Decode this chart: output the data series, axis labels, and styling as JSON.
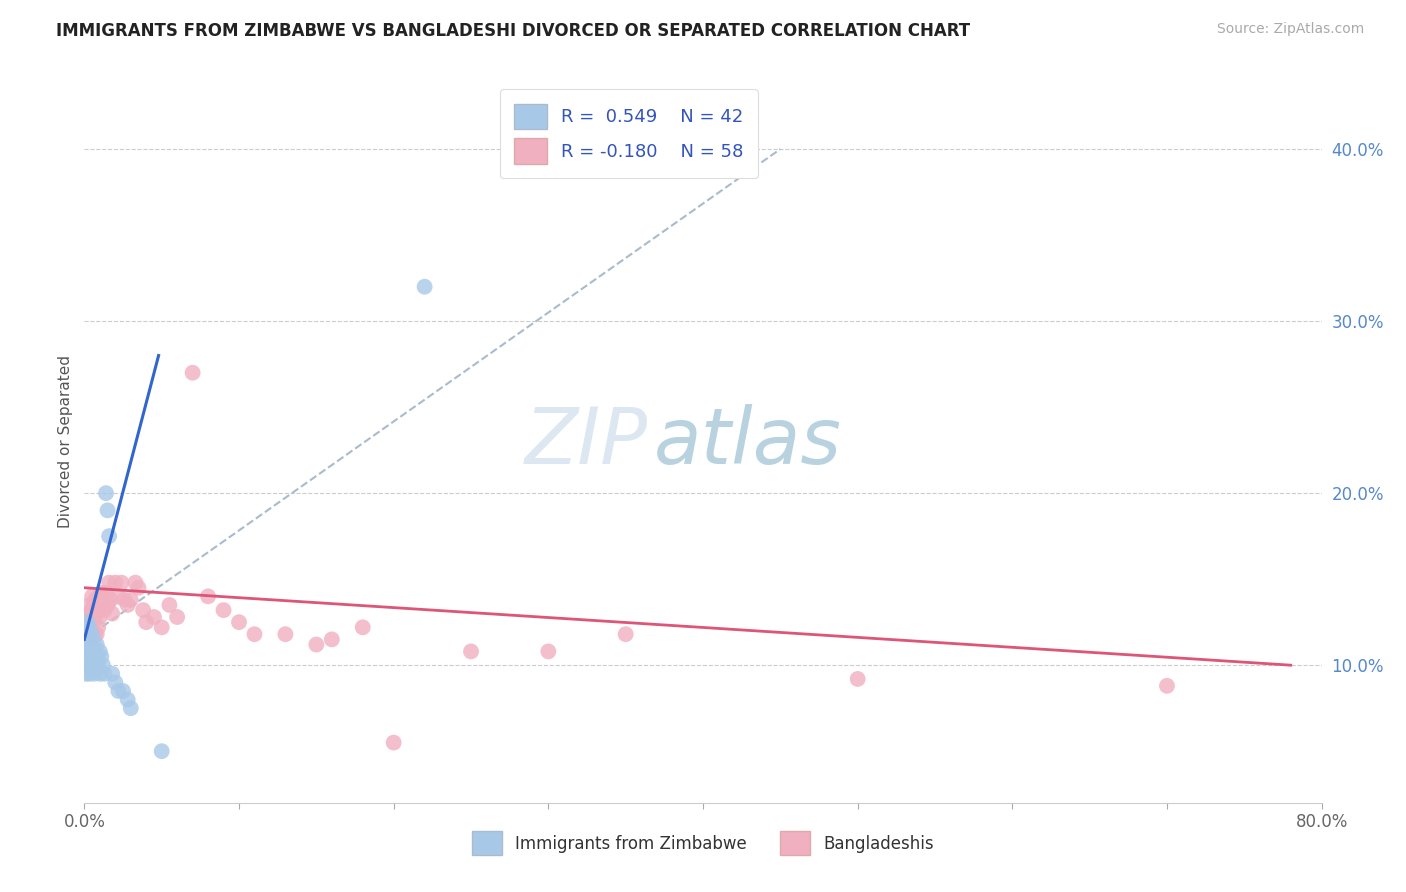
{
  "title": "IMMIGRANTS FROM ZIMBABWE VS BANGLADESHI DIVORCED OR SEPARATED CORRELATION CHART",
  "source": "Source: ZipAtlas.com",
  "ylabel": "Divorced or Separated",
  "xlim": [
    0.0,
    0.8
  ],
  "ylim": [
    0.02,
    0.44
  ],
  "xticks": [
    0.0,
    0.1,
    0.2,
    0.3,
    0.4,
    0.5,
    0.6,
    0.7,
    0.8
  ],
  "xticklabels": [
    "0.0%",
    "",
    "",
    "",
    "",
    "",
    "",
    "",
    "80.0%"
  ],
  "yticks_right": [
    0.1,
    0.2,
    0.3,
    0.4
  ],
  "ytick_labels_right": [
    "10.0%",
    "20.0%",
    "30.0%",
    "40.0%"
  ],
  "r_blue": 0.549,
  "n_blue": 42,
  "r_pink": -0.18,
  "n_pink": 58,
  "blue_color": "#a8c8e8",
  "pink_color": "#f0b0c0",
  "blue_line_color": "#3366cc",
  "pink_line_color": "#dd5577",
  "dash_line_color": "#aabbcc",
  "watermark_zip": "ZIP",
  "watermark_atlas": "atlas",
  "blue_scatter_x": [
    0.001,
    0.001,
    0.002,
    0.002,
    0.002,
    0.002,
    0.003,
    0.003,
    0.003,
    0.003,
    0.003,
    0.003,
    0.004,
    0.004,
    0.004,
    0.004,
    0.005,
    0.005,
    0.005,
    0.006,
    0.006,
    0.007,
    0.007,
    0.008,
    0.008,
    0.009,
    0.01,
    0.01,
    0.011,
    0.012,
    0.013,
    0.014,
    0.015,
    0.016,
    0.018,
    0.02,
    0.022,
    0.025,
    0.028,
    0.03,
    0.05,
    0.22
  ],
  "blue_scatter_y": [
    0.12,
    0.095,
    0.11,
    0.125,
    0.105,
    0.115,
    0.118,
    0.108,
    0.122,
    0.112,
    0.1,
    0.095,
    0.115,
    0.105,
    0.108,
    0.098,
    0.118,
    0.108,
    0.1,
    0.112,
    0.095,
    0.108,
    0.1,
    0.112,
    0.105,
    0.1,
    0.108,
    0.095,
    0.105,
    0.1,
    0.095,
    0.2,
    0.19,
    0.175,
    0.095,
    0.09,
    0.085,
    0.085,
    0.08,
    0.075,
    0.05,
    0.32
  ],
  "pink_scatter_x": [
    0.001,
    0.002,
    0.002,
    0.003,
    0.003,
    0.003,
    0.004,
    0.004,
    0.005,
    0.005,
    0.005,
    0.006,
    0.006,
    0.007,
    0.007,
    0.008,
    0.008,
    0.009,
    0.009,
    0.01,
    0.01,
    0.011,
    0.012,
    0.013,
    0.014,
    0.015,
    0.016,
    0.017,
    0.018,
    0.02,
    0.022,
    0.024,
    0.026,
    0.028,
    0.03,
    0.033,
    0.035,
    0.038,
    0.04,
    0.045,
    0.05,
    0.055,
    0.06,
    0.07,
    0.08,
    0.09,
    0.1,
    0.11,
    0.13,
    0.15,
    0.16,
    0.18,
    0.2,
    0.25,
    0.3,
    0.35,
    0.5,
    0.7
  ],
  "pink_scatter_y": [
    0.125,
    0.13,
    0.12,
    0.135,
    0.125,
    0.115,
    0.13,
    0.12,
    0.14,
    0.128,
    0.118,
    0.135,
    0.125,
    0.138,
    0.118,
    0.13,
    0.118,
    0.132,
    0.122,
    0.14,
    0.128,
    0.142,
    0.138,
    0.132,
    0.142,
    0.135,
    0.148,
    0.138,
    0.13,
    0.148,
    0.14,
    0.148,
    0.138,
    0.135,
    0.138,
    0.148,
    0.145,
    0.132,
    0.125,
    0.128,
    0.122,
    0.135,
    0.128,
    0.27,
    0.14,
    0.132,
    0.125,
    0.118,
    0.118,
    0.112,
    0.115,
    0.122,
    0.055,
    0.108,
    0.108,
    0.118,
    0.092,
    0.088
  ],
  "blue_line_x": [
    0.0,
    0.048
  ],
  "blue_line_y": [
    0.115,
    0.28
  ],
  "dash_line_x": [
    0.0,
    0.45
  ],
  "dash_line_y": [
    0.115,
    0.4
  ],
  "pink_line_x": [
    0.0,
    0.78
  ],
  "pink_line_y": [
    0.145,
    0.1
  ]
}
